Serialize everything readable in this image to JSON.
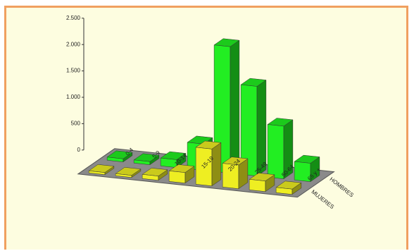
{
  "chart_data": {
    "type": "bar3d",
    "categories": [
      "0-4",
      "5-9",
      "10-14",
      "15-19",
      "20-24",
      "25-49",
      "50-64",
      "65 y +"
    ],
    "series": [
      {
        "name": "HOMBRES",
        "color": "#22ee22",
        "values": [
          60,
          60,
          150,
          500,
          2400,
          1700,
          1000,
          350
        ]
      },
      {
        "name": "MUJERES",
        "color": "#eeee22",
        "values": [
          40,
          40,
          80,
          200,
          700,
          450,
          200,
          100
        ]
      }
    ],
    "ylim": [
      0,
      2500
    ],
    "yticks": [
      0,
      {
        "value": 500,
        "label": "500"
      },
      {
        "value": 1000,
        "label": "1.000"
      },
      {
        "value": 1500,
        "label": "1.500"
      },
      {
        "value": 2000,
        "label": "2.000"
      },
      {
        "value": 2500,
        "label": "2.500"
      }
    ]
  }
}
